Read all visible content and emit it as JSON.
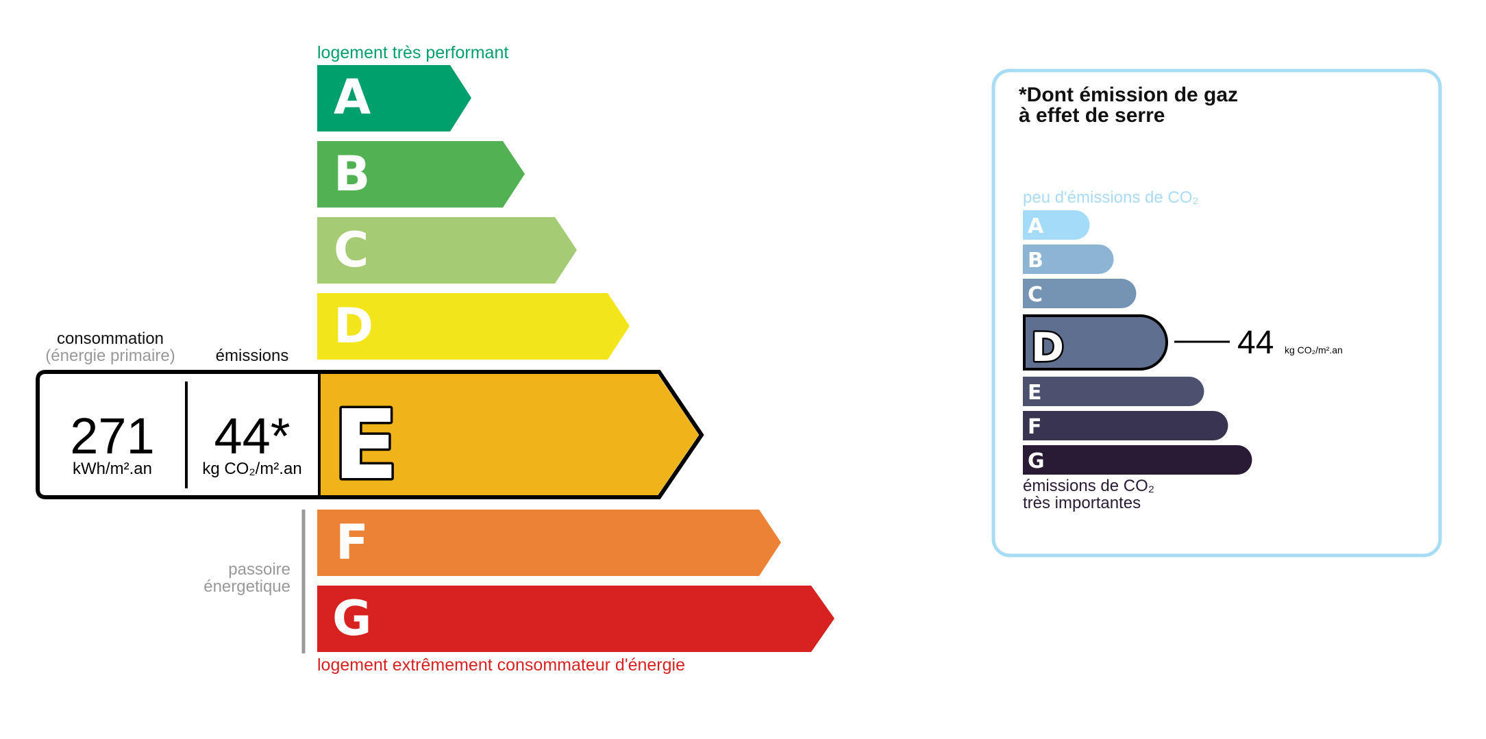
{
  "energy": {
    "top_label": "logement très performant",
    "bottom_label": "logement extrêmement consommateur d'énergie",
    "passoire_line1": "passoire",
    "passoire_line2": "énergetique",
    "consumption_header": "consommation",
    "consumption_subheader": "(énergie primaire)",
    "emissions_header": "émissions",
    "consumption_value": "271",
    "consumption_unit": "kWh/m².an",
    "emissions_value": "44*",
    "emissions_unit": "kg CO₂/m².an",
    "current_class": "E",
    "classes": [
      {
        "letter": "A",
        "color": "#00a06d"
      },
      {
        "letter": "B",
        "color": "#52b153"
      },
      {
        "letter": "C",
        "color": "#a5cc74"
      },
      {
        "letter": "D",
        "color": "#f2e61b"
      },
      {
        "letter": "E",
        "color": "#f0b41a"
      },
      {
        "letter": "F",
        "color": "#eb8235"
      },
      {
        "letter": "G",
        "color": "#d7221f"
      }
    ]
  },
  "ghg": {
    "title_line1": "*Dont émission de gaz",
    "title_line2": "à effet de serre",
    "top_label": "peu d'émissions de CO₂",
    "bottom_line1": "émissions de CO₂",
    "bottom_line2": "très importantes",
    "current_class": "D",
    "value": "44",
    "unit": "kg CO₂/m².an",
    "border_color": "#a8dcf5",
    "classes": [
      {
        "letter": "A",
        "color": "#a4dbf8"
      },
      {
        "letter": "B",
        "color": "#8cb4d3"
      },
      {
        "letter": "C",
        "color": "#7593b3"
      },
      {
        "letter": "D",
        "color": "#5e6f8f"
      },
      {
        "letter": "E",
        "color": "#4d5170"
      },
      {
        "letter": "F",
        "color": "#393551"
      },
      {
        "letter": "G",
        "color": "#291b35"
      }
    ]
  }
}
